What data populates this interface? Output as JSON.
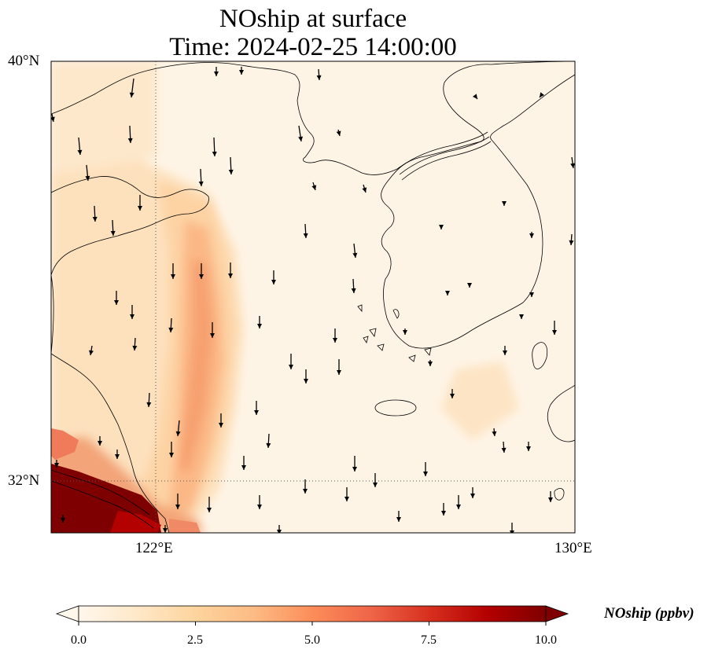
{
  "title": {
    "line1": "NOship at surface",
    "line2": "Time: 2024-02-25 14:00:00"
  },
  "map": {
    "extent": {
      "lon_min": 118,
      "lon_max": 130,
      "lat_min": 30.8,
      "lat_max": 40
    },
    "gridlines": {
      "lon": 122,
      "lat": 32,
      "style": "dotted"
    },
    "lat_labels": [
      "40°N",
      "32°N"
    ],
    "lon_labels": [
      "122°E",
      "130°E"
    ],
    "wind_vector_direction": "southward"
  },
  "colorbar": {
    "label": "NOship (ppbv)",
    "cmap": "OrRd",
    "min": 0.0,
    "max": 10.0,
    "extend": "both",
    "tick_labels": [
      "0.0",
      "2.5",
      "5.0",
      "7.5",
      "10.0"
    ],
    "colors": [
      "#fff7ec",
      "#fee8c8",
      "#fdd49e",
      "#fdbb84",
      "#fc8d59",
      "#ef6548",
      "#d7301f",
      "#b30000",
      "#7f0000"
    ]
  },
  "colors": {
    "coastline": "#000000",
    "gridline": "#555555",
    "arrow": "#000000"
  }
}
